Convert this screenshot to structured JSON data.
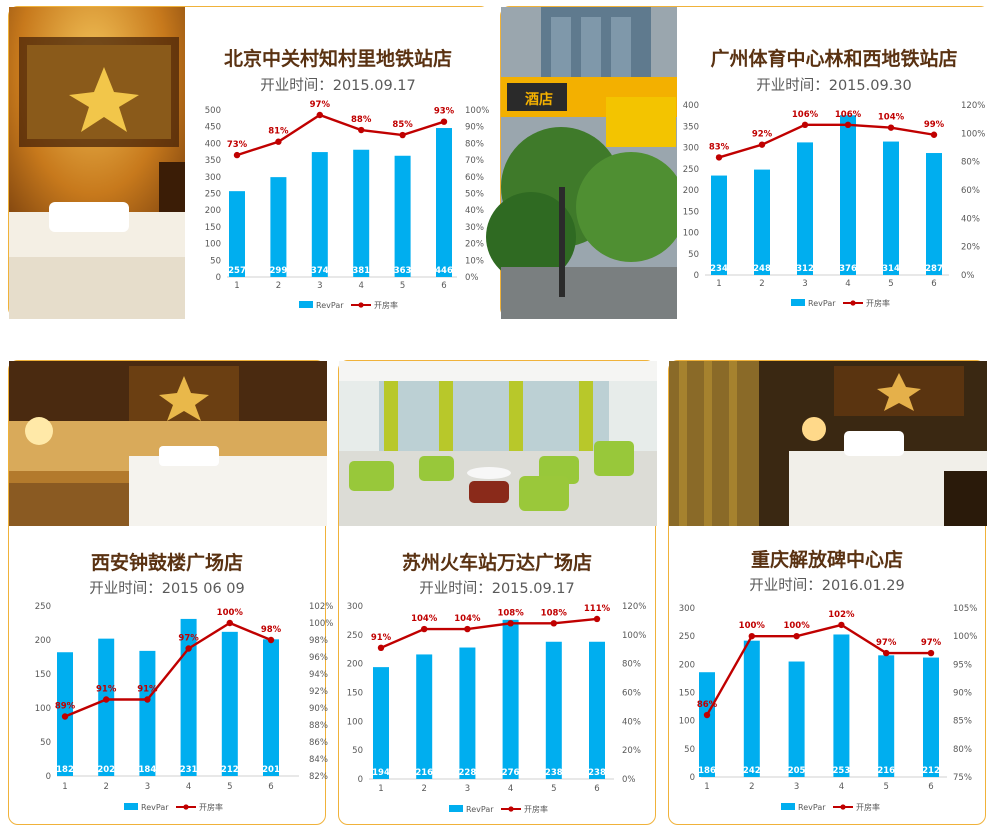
{
  "colors": {
    "bar": "#00aeef",
    "line": "#c00000",
    "title": "#5a3212",
    "border": "#f0b23a"
  },
  "stores": [
    {
      "name": "北京中关村知村里地铁站店",
      "opening": "开业时间：2015.09.17",
      "legend": [
        "RevPar",
        "开房率"
      ],
      "chart_data": {
        "type": "bar",
        "categories": [
          "1",
          "2",
          "3",
          "4",
          "5",
          "6"
        ],
        "series": [
          {
            "name": "RevPar",
            "type": "bar",
            "values": [
              257,
              299,
              374,
              381,
              363,
              446
            ],
            "labels": [
              "257",
              "299",
              "374",
              "381",
              "363",
              "446"
            ]
          },
          {
            "name": "开房率",
            "type": "line",
            "values": [
              73,
              81,
              97,
              88,
              85,
              93
            ],
            "labels": [
              "73%",
              "81%",
              "97%",
              "88%",
              "85%",
              "93%"
            ]
          }
        ],
        "ylim": [
          0,
          500
        ],
        "ylim_right": [
          0,
          100
        ],
        "yticks": [
          "0",
          "50",
          "100",
          "150",
          "200",
          "250",
          "300",
          "350",
          "400",
          "450",
          "500"
        ],
        "yticks_right": [
          "0%",
          "10%",
          "20%",
          "30%",
          "40%",
          "50%",
          "60%",
          "70%",
          "80%",
          "90%",
          "100%"
        ],
        "legend_position": "bottom"
      }
    },
    {
      "name": "广州体育中心林和西地铁站店",
      "opening": "开业时间：2015.09.30",
      "legend": [
        "RevPar",
        "开房率"
      ],
      "photo_sign": "酒店",
      "chart_data": {
        "type": "bar",
        "categories": [
          "1",
          "2",
          "3",
          "4",
          "5",
          "6"
        ],
        "series": [
          {
            "name": "RevPar",
            "type": "bar",
            "values": [
              234,
              248,
              312,
              376,
              314,
              287
            ],
            "labels": [
              "234",
              "248",
              "312",
              "376",
              "314",
              "287"
            ]
          },
          {
            "name": "开房率",
            "type": "line",
            "values": [
              83,
              92,
              106,
              106,
              104,
              99
            ],
            "labels": [
              "83%",
              "92%",
              "106%",
              "106%",
              "104%",
              "99%"
            ]
          }
        ],
        "ylim": [
          0,
          400
        ],
        "ylim_right": [
          0,
          120
        ],
        "yticks": [
          "0",
          "50",
          "100",
          "150",
          "200",
          "250",
          "300",
          "350",
          "400"
        ],
        "yticks_right": [
          "0%",
          "20%",
          "40%",
          "60%",
          "80%",
          "100%",
          "120%"
        ],
        "legend_position": "bottom"
      }
    },
    {
      "name": "西安钟鼓楼广场店",
      "opening": "开业时间：2015 06 09",
      "legend": [
        "RevPar",
        "开房率"
      ],
      "chart_data": {
        "type": "bar",
        "categories": [
          "1",
          "2",
          "3",
          "4",
          "5",
          "6"
        ],
        "series": [
          {
            "name": "RevPar",
            "type": "bar",
            "values": [
              182,
              202,
              184,
              231,
              212,
              201
            ],
            "labels": [
              "182",
              "202",
              "184",
              "231",
              "212",
              "201"
            ]
          },
          {
            "name": "开房率",
            "type": "line",
            "values": [
              89,
              91,
              91,
              97,
              100,
              98
            ],
            "labels": [
              "89%",
              "91%",
              "91%",
              "97%",
              "100%",
              "98%"
            ]
          }
        ],
        "ylim": [
          0,
          250
        ],
        "ylim_right": [
          82,
          102
        ],
        "yticks": [
          "0",
          "50",
          "100",
          "150",
          "200",
          "250"
        ],
        "yticks_right": [
          "82%",
          "84%",
          "86%",
          "88%",
          "90%",
          "92%",
          "94%",
          "96%",
          "98%",
          "100%",
          "102%"
        ],
        "legend_position": "bottom"
      }
    },
    {
      "name": "苏州火车站万达广场店",
      "opening": "开业时间：2015.09.17",
      "legend": [
        "RevPar",
        "开房率"
      ],
      "chart_data": {
        "type": "bar",
        "categories": [
          "1",
          "2",
          "3",
          "4",
          "5",
          "6"
        ],
        "series": [
          {
            "name": "RevPar",
            "type": "bar",
            "values": [
              194,
              216,
              228,
              276,
              238,
              238
            ],
            "labels": [
              "194",
              "216",
              "228",
              "276",
              "238",
              "238"
            ]
          },
          {
            "name": "开房率",
            "type": "line",
            "values": [
              91,
              104,
              104,
              108,
              108,
              111
            ],
            "labels": [
              "91%",
              "104%",
              "104%",
              "108%",
              "108%",
              "111%"
            ]
          }
        ],
        "ylim": [
          0,
          300
        ],
        "ylim_right": [
          0,
          120
        ],
        "yticks": [
          "0",
          "50",
          "100",
          "150",
          "200",
          "250",
          "300"
        ],
        "yticks_right": [
          "0%",
          "20%",
          "40%",
          "60%",
          "80%",
          "100%",
          "120%"
        ],
        "legend_position": "bottom"
      }
    },
    {
      "name": "重庆解放碑中心店",
      "opening": "开业时间：2016.01.29",
      "legend": [
        "RevPar",
        "开房率"
      ],
      "chart_data": {
        "type": "bar",
        "categories": [
          "1",
          "2",
          "3",
          "4",
          "5",
          "6"
        ],
        "series": [
          {
            "name": "RevPar",
            "type": "bar",
            "values": [
              186,
              242,
              205,
              253,
              216,
              212
            ],
            "labels": [
              "186",
              "242",
              "205",
              "253",
              "216",
              "212"
            ]
          },
          {
            "name": "开房率",
            "type": "line",
            "values": [
              86,
              100,
              100,
              102,
              97,
              97
            ],
            "labels": [
              "86%",
              "100%",
              "100%",
              "102%",
              "97%",
              "97%"
            ]
          }
        ],
        "ylim": [
          0,
          300
        ],
        "ylim_right": [
          75,
          105
        ],
        "yticks": [
          "0",
          "50",
          "100",
          "150",
          "200",
          "250",
          "300"
        ],
        "yticks_right": [
          "75%",
          "80%",
          "85%",
          "90%",
          "95%",
          "100%",
          "105%"
        ],
        "legend_position": "bottom"
      }
    }
  ]
}
